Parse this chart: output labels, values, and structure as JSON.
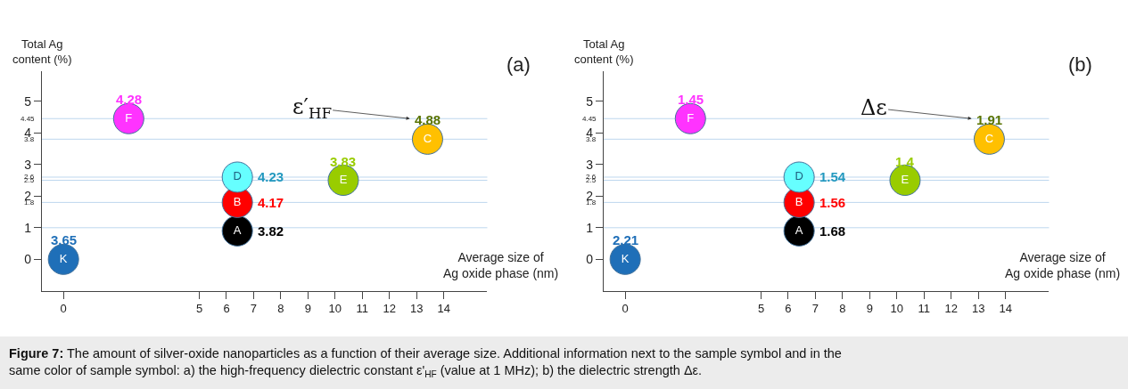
{
  "chart_data": [
    {
      "type": "scatter",
      "xlabel": "Average size of\nAg oxide phase (nm)",
      "ylabel": "Total Ag\ncontent (%)",
      "marker": "circle",
      "xlim": [
        -0.8,
        15.6
      ],
      "ylim": [
        -1,
        5.95
      ],
      "xticks": [
        0,
        5,
        6,
        7,
        8,
        9,
        10,
        11,
        12,
        13,
        14
      ],
      "yticks": [
        0,
        1,
        2,
        3,
        4,
        5
      ],
      "ref_lines": [
        {
          "axis": "y",
          "value": 1,
          "color": "#bdd7ee"
        },
        {
          "axis": "y",
          "value": 1.8,
          "color": "#bdd7ee",
          "label": "1.8"
        },
        {
          "axis": "y",
          "value": 2.5,
          "color": "#bdd7ee",
          "label": "2.5"
        },
        {
          "axis": "y",
          "value": 2.6,
          "color": "#bdd7ee",
          "label": "2.6"
        },
        {
          "axis": "y",
          "value": 3.8,
          "color": "#bdd7ee",
          "label": "3.8"
        },
        {
          "axis": "y",
          "value": 4.45,
          "color": "#bdd7ee",
          "label": "4.45"
        }
      ],
      "series": [
        {
          "name": "K",
          "color": "#1f6fb8",
          "x": [
            0
          ],
          "values": [
            0
          ]
        },
        {
          "name": "A",
          "color": "#000000",
          "x": [
            6.4
          ],
          "values": [
            0.9
          ]
        },
        {
          "name": "B",
          "color": "#ff0000",
          "x": [
            6.4
          ],
          "values": [
            1.8
          ]
        },
        {
          "name": "D",
          "color": "#66ffff",
          "x": [
            6.4
          ],
          "values": [
            2.6
          ]
        },
        {
          "name": "E",
          "color": "#99cc00",
          "x": [
            10.3
          ],
          "values": [
            2.5
          ]
        },
        {
          "name": "C",
          "color": "#ffc000",
          "x": [
            13.4
          ],
          "values": [
            3.8
          ]
        },
        {
          "name": "F",
          "color": "#ff33ff",
          "x": [
            2.4
          ],
          "values": [
            4.45
          ]
        }
      ],
      "annotations": [
        "(a)",
        "Figure 7: The amount of silver-oxide nanoparticles as a function of their average size. Additional information next to the sample symbol and in the same color of sample symbol: a) the high-frequency dielectric constant ε'$_{HF}$ (value at 1 MHz); b) the dielectric strength Δε.",
        {
          "text": "3.65",
          "x": 0,
          "y": 0
        },
        {
          "text": "3.82",
          "x": 6.4,
          "y": 0.9
        },
        {
          "text": "4.17",
          "x": 6.4,
          "y": 1.8
        },
        {
          "text": "4.23",
          "x": 6.4,
          "y": 2.6
        },
        {
          "text": "3.83",
          "x": 10.3,
          "y": 2.5
        },
        {
          "text": "4.88",
          "x": 13.4,
          "y": 3.8
        },
        {
          "text": "4.28",
          "x": 2.4,
          "y": 4.45
        },
        {
          "text": "ε′$_{HF}$",
          "x": 12.75,
          "y": 4.45
        }
      ]
    },
    {
      "type": "scatter",
      "xlabel": "Average size of\nAg oxide phase (nm)",
      "ylabel": "Total Ag\ncontent (%)",
      "marker": "circle",
      "xlim": [
        -0.8,
        15.6
      ],
      "ylim": [
        -1,
        5.95
      ],
      "xticks": [
        0,
        5,
        6,
        7,
        8,
        9,
        10,
        11,
        12,
        13,
        14
      ],
      "yticks": [
        0,
        1,
        2,
        3,
        4,
        5
      ],
      "ref_lines": [
        {
          "axis": "y",
          "value": 1,
          "color": "#bdd7ee"
        },
        {
          "axis": "y",
          "value": 1.8,
          "color": "#bdd7ee",
          "label": "1.8"
        },
        {
          "axis": "y",
          "value": 2.5,
          "color": "#bdd7ee",
          "label": "2.5"
        },
        {
          "axis": "y",
          "value": 2.6,
          "color": "#bdd7ee",
          "label": "2.6"
        },
        {
          "axis": "y",
          "value": 3.8,
          "color": "#bdd7ee",
          "label": "3.8"
        },
        {
          "axis": "y",
          "value": 4.45,
          "color": "#bdd7ee",
          "label": "4.45"
        }
      ],
      "series": [
        {
          "name": "K",
          "color": "#1f6fb8",
          "x": [
            0
          ],
          "values": [
            0
          ]
        },
        {
          "name": "A",
          "color": "#000000",
          "x": [
            6.4
          ],
          "values": [
            0.9
          ]
        },
        {
          "name": "B",
          "color": "#ff0000",
          "x": [
            6.4
          ],
          "values": [
            1.8
          ]
        },
        {
          "name": "D",
          "color": "#66ffff",
          "x": [
            6.4
          ],
          "values": [
            2.6
          ]
        },
        {
          "name": "E",
          "color": "#99cc00",
          "x": [
            10.3
          ],
          "values": [
            2.5
          ]
        },
        {
          "name": "C",
          "color": "#ffc000",
          "x": [
            13.4
          ],
          "values": [
            3.8
          ]
        },
        {
          "name": "F",
          "color": "#ff33ff",
          "x": [
            2.4
          ],
          "values": [
            4.45
          ]
        }
      ],
      "annotations": [
        "(b)",
        {
          "text": "2.21",
          "x": 0,
          "y": 0
        },
        {
          "text": "1.68",
          "x": 6.4,
          "y": 0.9
        },
        {
          "text": "1.56",
          "x": 6.4,
          "y": 1.8
        },
        {
          "text": "1.54",
          "x": 6.4,
          "y": 2.6
        },
        {
          "text": "1.4",
          "x": 10.3,
          "y": 2.5
        },
        {
          "text": "1.91",
          "x": 13.4,
          "y": 3.8
        },
        {
          "text": "1.45",
          "x": 2.4,
          "y": 4.45
        },
        {
          "text": "Δε",
          "x": 12.75,
          "y": 4.45
        }
      ]
    }
  ]
}
